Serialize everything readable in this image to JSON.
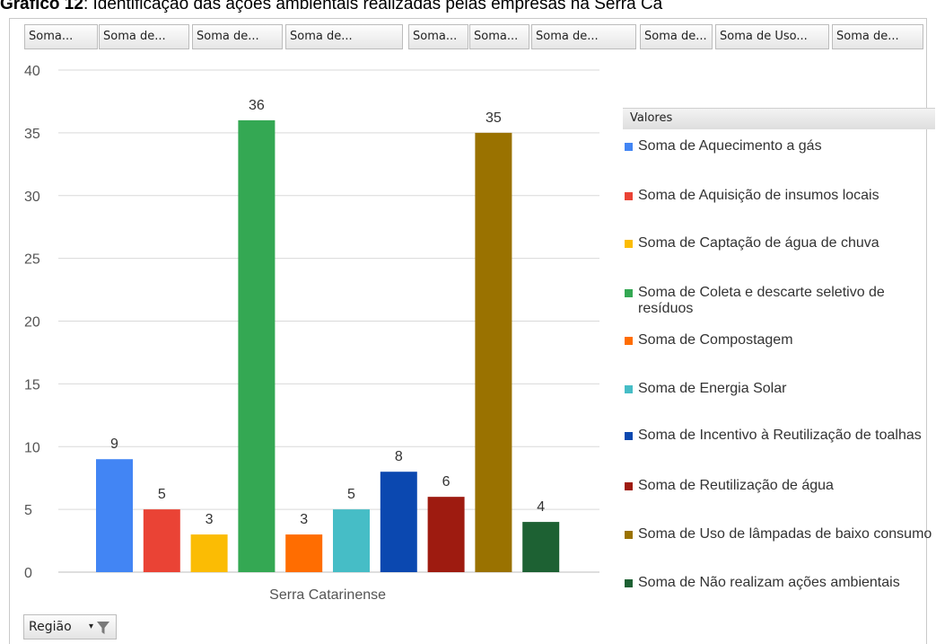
{
  "caption": {
    "bold": "Gráfico 12",
    "text": ": Identificação das ações ambientais realizadas pelas empresas na Serra Ca"
  },
  "field_buttons": [
    "Soma...",
    "Soma de...",
    "Soma de...",
    "Soma de...",
    "Soma...",
    "Soma...",
    "Soma de...",
    "Soma de...",
    "Soma de Uso...",
    "Soma de..."
  ],
  "legend_header": "Valores",
  "filter": {
    "label": "Região",
    "icon": "funnel-filter-icon"
  },
  "chart_data": {
    "type": "bar",
    "categories": [
      "Serra Catarinense"
    ],
    "series": [
      {
        "name": "Soma de Aquecimento a gás",
        "values": [
          9
        ],
        "color": "#4285f4"
      },
      {
        "name": "Soma de Aquisição de insumos locais",
        "values": [
          5
        ],
        "color": "#ea4335"
      },
      {
        "name": "Soma de Captação de água de chuva",
        "values": [
          3
        ],
        "color": "#fbbc04"
      },
      {
        "name": "Soma de Coleta e descarte seletivo de resíduos",
        "values": [
          36
        ],
        "color": "#34a853"
      },
      {
        "name": "Soma de Compostagem",
        "values": [
          3
        ],
        "color": "#ff6d01"
      },
      {
        "name": "Soma de Energia Solar",
        "values": [
          5
        ],
        "color": "#46bdc6"
      },
      {
        "name": "Soma de Incentivo à Reutilização de toalhas",
        "values": [
          8
        ],
        "color": "#0b48b0"
      },
      {
        "name": "Soma de Reutilização de água",
        "values": [
          6
        ],
        "color": "#9e1b10"
      },
      {
        "name": "Soma de Uso de lâmpadas de baixo consumo",
        "values": [
          35
        ],
        "color": "#9a7200"
      },
      {
        "name": "Soma de Não realizam ações ambientais",
        "values": [
          4
        ],
        "color": "#1d6133"
      }
    ],
    "yticks": [
      0,
      5,
      10,
      15,
      20,
      25,
      30,
      35,
      40
    ],
    "ylim": [
      0,
      40
    ],
    "grid": true,
    "legend": "right",
    "data_labels": true
  }
}
